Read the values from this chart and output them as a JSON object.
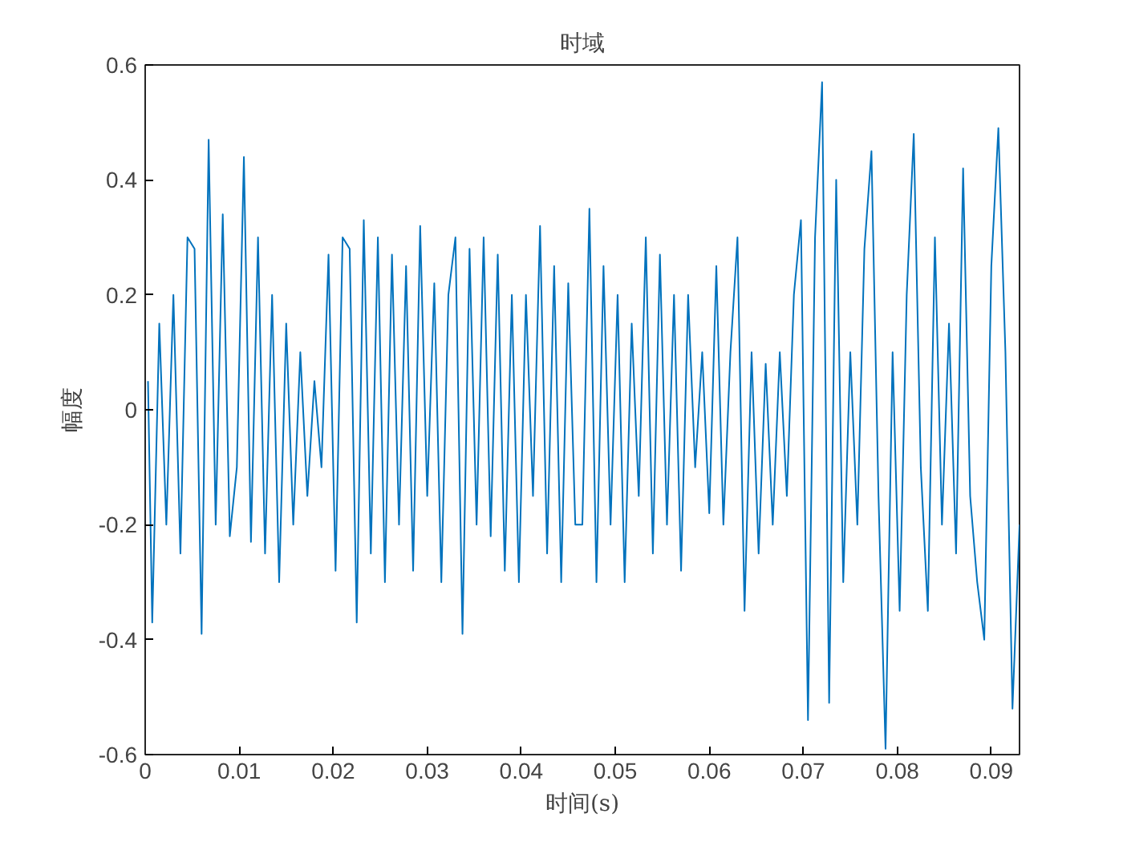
{
  "chart_data": {
    "type": "line",
    "title": "时域",
    "xlabel": "时间(s)",
    "ylabel": "幅度",
    "x": [
      0.0003,
      0.00075,
      0.0015,
      0.00225,
      0.003,
      0.00375,
      0.0045,
      0.00525,
      0.006,
      0.00675,
      0.0075,
      0.00825,
      0.009,
      0.00975,
      0.0105,
      0.01125,
      0.012,
      0.01275,
      0.0135,
      0.01425,
      0.015,
      0.01575,
      0.0165,
      0.01725,
      0.018,
      0.01875,
      0.0195,
      0.02025,
      0.021,
      0.02175,
      0.0225,
      0.02325,
      0.024,
      0.02475,
      0.0255,
      0.02625,
      0.027,
      0.02775,
      0.0285,
      0.02925,
      0.03,
      0.03075,
      0.0315,
      0.03225,
      0.033,
      0.03375,
      0.0345,
      0.03525,
      0.036,
      0.03675,
      0.0375,
      0.03825,
      0.039,
      0.03975,
      0.0405,
      0.04125,
      0.042,
      0.04275,
      0.0435,
      0.04425,
      0.045,
      0.04575,
      0.0465,
      0.04725,
      0.048,
      0.04875,
      0.0495,
      0.05025,
      0.051,
      0.05175,
      0.0525,
      0.05325,
      0.054,
      0.05475,
      0.0555,
      0.05625,
      0.057,
      0.05775,
      0.0585,
      0.05925,
      0.06,
      0.06075,
      0.0615,
      0.06225,
      0.063,
      0.06375,
      0.0645,
      0.06525,
      0.066,
      0.06675,
      0.0675,
      0.06825,
      0.069,
      0.06975,
      0.0705,
      0.07125,
      0.072,
      0.07275,
      0.0735,
      0.07425,
      0.075,
      0.07575,
      0.0765,
      0.07725,
      0.078,
      0.07875,
      0.0795,
      0.08025,
      0.081,
      0.08175,
      0.0825,
      0.08325,
      0.084,
      0.08475,
      0.0855,
      0.08625,
      0.087,
      0.08775,
      0.0885,
      0.08925,
      0.09,
      0.09075,
      0.0915,
      0.09225,
      0.093
    ],
    "series": [
      {
        "color": "#0072bd",
        "values": [
          0.05,
          -0.37,
          0.15,
          -0.2,
          0.2,
          -0.25,
          0.3,
          0.28,
          -0.39,
          0.47,
          -0.2,
          0.34,
          -0.22,
          -0.1,
          0.44,
          -0.23,
          0.3,
          -0.25,
          0.2,
          -0.3,
          0.15,
          -0.2,
          0.1,
          -0.15,
          0.05,
          -0.1,
          0.27,
          -0.28,
          0.3,
          0.28,
          -0.37,
          0.33,
          -0.25,
          0.3,
          -0.3,
          0.27,
          -0.2,
          0.25,
          -0.28,
          0.32,
          -0.15,
          0.22,
          -0.3,
          0.2,
          0.3,
          -0.39,
          0.28,
          -0.2,
          0.3,
          -0.22,
          0.27,
          -0.28,
          0.2,
          -0.3,
          0.2,
          -0.15,
          0.32,
          -0.25,
          0.25,
          -0.3,
          0.22,
          -0.2,
          -0.2,
          0.35,
          -0.3,
          0.25,
          -0.2,
          0.2,
          -0.3,
          0.15,
          -0.15,
          0.3,
          -0.25,
          0.27,
          -0.2,
          0.2,
          -0.28,
          0.2,
          -0.1,
          0.1,
          -0.18,
          0.25,
          -0.2,
          0.1,
          0.3,
          -0.35,
          0.1,
          -0.25,
          0.08,
          -0.2,
          0.1,
          -0.15,
          0.2,
          0.33,
          -0.54,
          0.3,
          0.57,
          -0.51,
          0.4,
          -0.3,
          0.1,
          -0.2,
          0.28,
          0.45,
          -0.15,
          -0.59,
          0.1,
          -0.35,
          0.2,
          0.48,
          -0.1,
          -0.35,
          0.3,
          -0.2,
          0.15,
          -0.25,
          0.42,
          -0.15,
          -0.3,
          -0.4,
          0.25,
          0.49,
          0.1,
          -0.52,
          -0.2
        ]
      }
    ],
    "xlim": [
      0,
      0.093
    ],
    "ylim": [
      -0.6,
      0.6
    ],
    "xticks": [
      0,
      0.01,
      0.02,
      0.03,
      0.04,
      0.05,
      0.06,
      0.07,
      0.08,
      0.09
    ],
    "yticks": [
      -0.6,
      -0.4,
      -0.2,
      0,
      0.2,
      0.4,
      0.6
    ],
    "grid": false,
    "marker": "none",
    "line_style": "solid"
  }
}
